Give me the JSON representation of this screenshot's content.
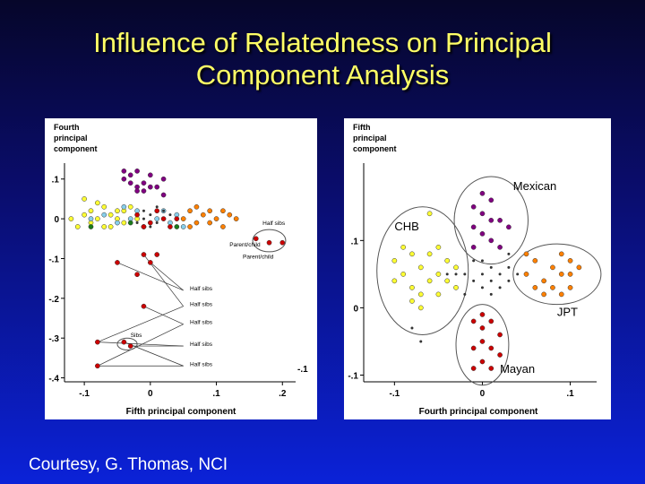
{
  "slide": {
    "title_line1": "Influence of Relatedness on Principal",
    "title_line2": "Component Analysis",
    "footer": "Courtesy, G. Thomas, NCI"
  },
  "colors": {
    "CHB": "#ffff33",
    "Mexican": "#800080",
    "JPT": "#ff8000",
    "Mayan": "#cc0000",
    "other": "#333333",
    "blue": "#87ceeb",
    "green": "#1a7a1a"
  },
  "chart_data": [
    {
      "type": "scatter",
      "ylabel": "Fourth principal component",
      "xlabel": "Fifth principal component",
      "xlim": [
        -0.13,
        0.22
      ],
      "ylim": [
        -0.41,
        0.14
      ],
      "x_ticks": [
        "-.1",
        "0",
        ".1",
        ".2"
      ],
      "y_ticks": [
        ".1",
        "0",
        "-.1",
        "-.2",
        "-.3",
        "-.4"
      ],
      "x_tick_values": [
        -0.1,
        0,
        0.1,
        0.2
      ],
      "y_tick_values": [
        0.1,
        0,
        -0.1,
        -0.2,
        -0.3,
        -0.4
      ],
      "corner_label": "-.1",
      "series": [
        {
          "group": "CHB",
          "points": [
            [
              -0.12,
              0.0
            ],
            [
              -0.11,
              -0.02
            ],
            [
              -0.1,
              0.01
            ],
            [
              -0.09,
              0.02
            ],
            [
              -0.09,
              -0.01
            ],
            [
              -0.08,
              0.0
            ],
            [
              -0.07,
              0.03
            ],
            [
              -0.07,
              -0.02
            ],
            [
              -0.06,
              0.01
            ],
            [
              -0.05,
              0.0
            ],
            [
              -0.05,
              0.02
            ],
            [
              -0.04,
              -0.01
            ],
            [
              -0.03,
              0.03
            ],
            [
              -0.1,
              0.05
            ],
            [
              -0.08,
              0.04
            ],
            [
              -0.06,
              -0.02
            ],
            [
              -0.04,
              0.02
            ],
            [
              -0.02,
              0.0
            ]
          ]
        },
        {
          "group": "blue",
          "points": [
            [
              -0.09,
              0.0
            ],
            [
              -0.07,
              0.01
            ],
            [
              -0.05,
              -0.01
            ],
            [
              -0.03,
              0.0
            ],
            [
              -0.02,
              0.02
            ],
            [
              -0.01,
              -0.02
            ],
            [
              0.01,
              0.0
            ],
            [
              0.02,
              0.02
            ],
            [
              0.03,
              -0.01
            ],
            [
              0.04,
              0.01
            ],
            [
              0.05,
              -0.02
            ],
            [
              -0.04,
              0.03
            ]
          ]
        },
        {
          "group": "Mexican",
          "points": [
            [
              -0.04,
              0.12
            ],
            [
              -0.03,
              0.11
            ],
            [
              -0.02,
              0.12
            ],
            [
              -0.03,
              0.09
            ],
            [
              -0.02,
              0.08
            ],
            [
              -0.01,
              0.09
            ],
            [
              0.0,
              0.11
            ],
            [
              0.01,
              0.08
            ],
            [
              0.02,
              0.1
            ],
            [
              -0.04,
              0.1
            ],
            [
              -0.01,
              0.07
            ],
            [
              0.02,
              0.06
            ],
            [
              -0.02,
              0.07
            ],
            [
              0.0,
              0.08
            ]
          ]
        },
        {
          "group": "JPT",
          "points": [
            [
              0.05,
              0.0
            ],
            [
              0.06,
              0.02
            ],
            [
              0.07,
              -0.01
            ],
            [
              0.08,
              0.01
            ],
            [
              0.09,
              0.02
            ],
            [
              0.1,
              0.0
            ],
            [
              0.11,
              -0.02
            ],
            [
              0.12,
              0.01
            ],
            [
              0.13,
              0.0
            ],
            [
              0.07,
              0.03
            ],
            [
              0.09,
              -0.01
            ],
            [
              0.06,
              -0.02
            ],
            [
              0.11,
              0.02
            ]
          ]
        },
        {
          "group": "other",
          "points": [
            [
              -0.01,
              0.0
            ],
            [
              0.0,
              0.01
            ],
            [
              0.01,
              -0.01
            ],
            [
              0.02,
              0.0
            ],
            [
              0.03,
              0.01
            ],
            [
              -0.02,
              -0.01
            ],
            [
              0.0,
              -0.02
            ],
            [
              0.02,
              0.02
            ],
            [
              -0.01,
              0.02
            ],
            [
              0.01,
              0.03
            ]
          ]
        },
        {
          "group": "Mayan",
          "points": [
            [
              -0.02,
              0.01
            ],
            [
              0.0,
              -0.01
            ],
            [
              0.02,
              0.0
            ],
            [
              0.01,
              0.02
            ],
            [
              0.03,
              -0.02
            ],
            [
              -0.01,
              -0.02
            ],
            [
              0.04,
              0.0
            ],
            [
              0.16,
              -0.05
            ],
            [
              0.18,
              -0.06
            ],
            [
              0.2,
              -0.06
            ],
            [
              -0.01,
              -0.09
            ],
            [
              0.01,
              -0.09
            ],
            [
              -0.05,
              -0.11
            ],
            [
              0.0,
              -0.11
            ],
            [
              -0.02,
              -0.14
            ],
            [
              -0.01,
              -0.22
            ],
            [
              -0.08,
              -0.31
            ],
            [
              -0.04,
              -0.31
            ],
            [
              -0.03,
              -0.32
            ],
            [
              -0.08,
              -0.37
            ]
          ]
        },
        {
          "group": "green",
          "points": [
            [
              -0.09,
              -0.02
            ],
            [
              -0.03,
              -0.01
            ],
            [
              0.04,
              -0.02
            ]
          ]
        }
      ],
      "annotations": [
        {
          "text": "Half sibs",
          "x": 0.17,
          "y": -0.015
        },
        {
          "text": "Parent/child",
          "x": 0.12,
          "y": -0.07
        },
        {
          "text": "Parent/child",
          "x": 0.14,
          "y": -0.1
        },
        {
          "text": "Half sibs",
          "x": 0.06,
          "y": -0.18
        },
        {
          "text": "Half sibs",
          "x": 0.06,
          "y": -0.22
        },
        {
          "text": "Half sibs",
          "x": 0.06,
          "y": -0.265
        },
        {
          "text": "Sibs",
          "x": -0.03,
          "y": -0.297
        },
        {
          "text": "Half sibs",
          "x": 0.06,
          "y": -0.32
        },
        {
          "text": "Half sibs",
          "x": 0.06,
          "y": -0.37
        }
      ],
      "connector_lines": [
        [
          [
            0.05,
            -0.18
          ],
          [
            0.0,
            -0.11
          ]
        ],
        [
          [
            0.05,
            -0.18
          ],
          [
            -0.05,
            -0.11
          ]
        ],
        [
          [
            0.05,
            -0.22
          ],
          [
            -0.01,
            -0.09
          ]
        ],
        [
          [
            0.05,
            -0.22
          ],
          [
            -0.08,
            -0.31
          ]
        ],
        [
          [
            0.05,
            -0.265
          ],
          [
            -0.01,
            -0.22
          ]
        ],
        [
          [
            0.05,
            -0.265
          ],
          [
            -0.08,
            -0.37
          ]
        ],
        [
          [
            0.05,
            -0.32
          ],
          [
            -0.08,
            -0.31
          ]
        ],
        [
          [
            0.05,
            -0.32
          ],
          [
            -0.03,
            -0.32
          ]
        ],
        [
          [
            0.05,
            -0.37
          ],
          [
            -0.04,
            -0.31
          ]
        ],
        [
          [
            0.05,
            -0.37
          ],
          [
            -0.08,
            -0.37
          ]
        ]
      ],
      "ellipses": [
        {
          "cx": 0.18,
          "cy": -0.055,
          "rx": 0.025,
          "ry": 0.028
        },
        {
          "cx": -0.035,
          "cy": -0.315,
          "rx": 0.015,
          "ry": 0.015
        }
      ]
    },
    {
      "type": "scatter",
      "ylabel": "Fifth principal component",
      "xlabel": "Fourth principal component",
      "xlim": [
        -0.135,
        0.13
      ],
      "ylim": [
        -0.11,
        0.215
      ],
      "x_ticks": [
        "-.1",
        "0",
        ".1"
      ],
      "y_ticks": [
        ".1",
        "0",
        "-.1"
      ],
      "x_tick_values": [
        -0.1,
        0,
        0.1
      ],
      "y_tick_values": [
        0.1,
        0,
        -0.1
      ],
      "series": [
        {
          "group": "CHB",
          "points": [
            [
              -0.1,
              0.07
            ],
            [
              -0.09,
              0.05
            ],
            [
              -0.08,
              0.08
            ],
            [
              -0.08,
              0.03
            ],
            [
              -0.07,
              0.06
            ],
            [
              -0.06,
              0.04
            ],
            [
              -0.06,
              0.08
            ],
            [
              -0.05,
              0.05
            ],
            [
              -0.05,
              0.02
            ],
            [
              -0.04,
              0.07
            ],
            [
              -0.04,
              0.04
            ],
            [
              -0.03,
              0.06
            ],
            [
              -0.09,
              0.09
            ],
            [
              -0.07,
              0.02
            ],
            [
              -0.05,
              0.09
            ],
            [
              -0.08,
              0.01
            ],
            [
              -0.03,
              0.03
            ],
            [
              -0.06,
              0.14
            ],
            [
              -0.1,
              0.04
            ],
            [
              -0.07,
              0.0
            ]
          ]
        },
        {
          "group": "Mexican",
          "points": [
            [
              -0.01,
              0.15
            ],
            [
              0.0,
              0.14
            ],
            [
              0.01,
              0.16
            ],
            [
              -0.01,
              0.12
            ],
            [
              0.0,
              0.11
            ],
            [
              0.02,
              0.13
            ],
            [
              0.01,
              0.1
            ],
            [
              0.0,
              0.17
            ],
            [
              -0.01,
              0.09
            ],
            [
              0.02,
              0.09
            ],
            [
              0.03,
              0.12
            ],
            [
              0.01,
              0.13
            ]
          ]
        },
        {
          "group": "JPT",
          "points": [
            [
              0.05,
              0.05
            ],
            [
              0.06,
              0.07
            ],
            [
              0.07,
              0.04
            ],
            [
              0.08,
              0.06
            ],
            [
              0.09,
              0.05
            ],
            [
              0.1,
              0.07
            ],
            [
              0.1,
              0.03
            ],
            [
              0.09,
              0.08
            ],
            [
              0.07,
              0.02
            ],
            [
              0.06,
              0.03
            ],
            [
              0.08,
              0.03
            ],
            [
              0.1,
              0.05
            ],
            [
              0.11,
              0.06
            ],
            [
              0.05,
              0.08
            ],
            [
              0.09,
              0.02
            ]
          ]
        },
        {
          "group": "Mayan",
          "points": [
            [
              -0.01,
              -0.02
            ],
            [
              0.0,
              -0.03
            ],
            [
              0.01,
              -0.02
            ],
            [
              0.02,
              -0.04
            ],
            [
              0.0,
              -0.05
            ],
            [
              -0.01,
              -0.06
            ],
            [
              0.01,
              -0.06
            ],
            [
              0.0,
              -0.08
            ],
            [
              0.01,
              -0.09
            ],
            [
              -0.01,
              -0.09
            ],
            [
              0.02,
              -0.07
            ],
            [
              0.0,
              -0.01
            ]
          ]
        },
        {
          "group": "other",
          "points": [
            [
              -0.02,
              0.05
            ],
            [
              -0.01,
              0.04
            ],
            [
              0.0,
              0.05
            ],
            [
              0.01,
              0.04
            ],
            [
              0.02,
              0.05
            ],
            [
              0.03,
              0.06
            ],
            [
              0.01,
              0.06
            ],
            [
              -0.01,
              0.07
            ],
            [
              0.0,
              0.03
            ],
            [
              0.02,
              0.03
            ],
            [
              0.03,
              0.04
            ],
            [
              -0.03,
              0.05
            ],
            [
              0.04,
              0.05
            ],
            [
              0.01,
              0.02
            ],
            [
              -0.02,
              0.02
            ],
            [
              0.0,
              0.07
            ],
            [
              -0.04,
              0.05
            ],
            [
              -0.07,
              -0.05
            ],
            [
              -0.08,
              -0.03
            ],
            [
              0.03,
              0.08
            ]
          ]
        }
      ],
      "ellipses": [
        {
          "label": "CHB",
          "cx": -0.068,
          "cy": 0.055,
          "rx": 0.052,
          "ry": 0.095
        },
        {
          "label": "Mexican",
          "cx": 0.01,
          "cy": 0.13,
          "rx": 0.042,
          "ry": 0.065
        },
        {
          "label": "JPT",
          "cx": 0.085,
          "cy": 0.05,
          "rx": 0.05,
          "ry": 0.045
        },
        {
          "label": "Mayan",
          "cx": 0.0,
          "cy": -0.055,
          "rx": 0.03,
          "ry": 0.06
        }
      ],
      "labels": [
        {
          "text": "CHB",
          "x": -0.1,
          "y": 0.115
        },
        {
          "text": "Mexican",
          "x": 0.035,
          "y": 0.175
        },
        {
          "text": "JPT",
          "x": 0.085,
          "y": -0.012
        },
        {
          "text": "Mayan",
          "x": 0.02,
          "y": -0.097
        }
      ]
    }
  ]
}
